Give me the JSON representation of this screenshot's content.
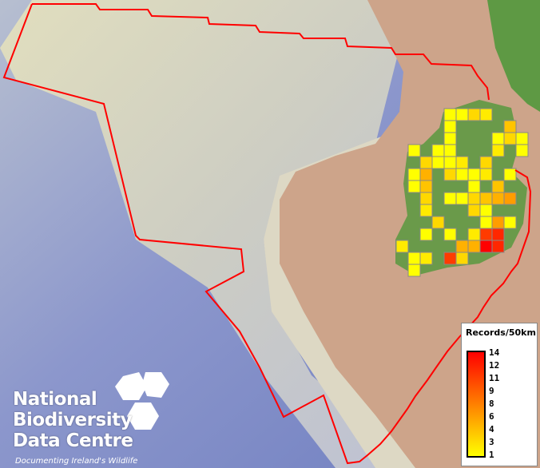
{
  "legend": {
    "title": "Records/50km",
    "ticks": [
      "14",
      "12",
      "11",
      "9",
      "8",
      "6",
      "4",
      "3",
      "1"
    ],
    "colors": {
      "high": "#ff0000",
      "mid": "#ff8000",
      "low": "#ffff00"
    }
  },
  "logo": {
    "line1": "National",
    "line2": "Biodiversity",
    "line3": "Data Centre",
    "tagline": "Documenting Ireland's Wildlife"
  },
  "colors": {
    "boundary": "#ff0000",
    "land": "#6a9a4a",
    "grid_border": "#888888"
  },
  "grid_records": [
    {
      "col": 4,
      "row": 0,
      "v": 1
    },
    {
      "col": 5,
      "row": 0,
      "v": 1
    },
    {
      "col": 6,
      "row": 0,
      "v": 3
    },
    {
      "col": 7,
      "row": 0,
      "v": 2
    },
    {
      "col": 4,
      "row": 1,
      "v": 1
    },
    {
      "col": 9,
      "row": 1,
      "v": 4
    },
    {
      "col": 4,
      "row": 2,
      "v": 1
    },
    {
      "col": 8,
      "row": 2,
      "v": 1
    },
    {
      "col": 9,
      "row": 2,
      "v": 3
    },
    {
      "col": 10,
      "row": 2,
      "v": 1
    },
    {
      "col": 1,
      "row": 3,
      "v": 1
    },
    {
      "col": 3,
      "row": 3,
      "v": 1
    },
    {
      "col": 4,
      "row": 3,
      "v": 1
    },
    {
      "col": 8,
      "row": 3,
      "v": 2
    },
    {
      "col": 10,
      "row": 3,
      "v": 1
    },
    {
      "col": 2,
      "row": 4,
      "v": 3
    },
    {
      "col": 3,
      "row": 4,
      "v": 1
    },
    {
      "col": 4,
      "row": 4,
      "v": 1
    },
    {
      "col": 5,
      "row": 4,
      "v": 2
    },
    {
      "col": 7,
      "row": 4,
      "v": 3
    },
    {
      "col": 1,
      "row": 5,
      "v": 1
    },
    {
      "col": 2,
      "row": 5,
      "v": 5
    },
    {
      "col": 4,
      "row": 5,
      "v": 3
    },
    {
      "col": 5,
      "row": 5,
      "v": 1
    },
    {
      "col": 6,
      "row": 5,
      "v": 1
    },
    {
      "col": 7,
      "row": 5,
      "v": 2
    },
    {
      "col": 9,
      "row": 5,
      "v": 1
    },
    {
      "col": 1,
      "row": 6,
      "v": 1
    },
    {
      "col": 2,
      "row": 6,
      "v": 4
    },
    {
      "col": 6,
      "row": 6,
      "v": 1
    },
    {
      "col": 8,
      "row": 6,
      "v": 4
    },
    {
      "col": 2,
      "row": 7,
      "v": 3
    },
    {
      "col": 4,
      "row": 7,
      "v": 1
    },
    {
      "col": 5,
      "row": 7,
      "v": 1
    },
    {
      "col": 6,
      "row": 7,
      "v": 3
    },
    {
      "col": 7,
      "row": 7,
      "v": 4
    },
    {
      "col": 8,
      "row": 7,
      "v": 5
    },
    {
      "col": 9,
      "row": 7,
      "v": 6
    },
    {
      "col": 2,
      "row": 8,
      "v": 2
    },
    {
      "col": 6,
      "row": 8,
      "v": 3
    },
    {
      "col": 7,
      "row": 8,
      "v": 1
    },
    {
      "col": 3,
      "row": 9,
      "v": 3
    },
    {
      "col": 7,
      "row": 9,
      "v": 1
    },
    {
      "col": 8,
      "row": 9,
      "v": 6
    },
    {
      "col": 9,
      "row": 9,
      "v": 1
    },
    {
      "col": 2,
      "row": 10,
      "v": 1
    },
    {
      "col": 4,
      "row": 10,
      "v": 1
    },
    {
      "col": 6,
      "row": 10,
      "v": 2
    },
    {
      "col": 7,
      "row": 10,
      "v": 11
    },
    {
      "col": 8,
      "row": 10,
      "v": 12
    },
    {
      "col": 0,
      "row": 11,
      "v": 2
    },
    {
      "col": 5,
      "row": 11,
      "v": 5
    },
    {
      "col": 6,
      "row": 11,
      "v": 5
    },
    {
      "col": 7,
      "row": 11,
      "v": 14
    },
    {
      "col": 8,
      "row": 11,
      "v": 12
    },
    {
      "col": 1,
      "row": 12,
      "v": 1
    },
    {
      "col": 2,
      "row": 12,
      "v": 2
    },
    {
      "col": 4,
      "row": 12,
      "v": 11
    },
    {
      "col": 5,
      "row": 12,
      "v": 3
    },
    {
      "col": 1,
      "row": 13,
      "v": 1
    }
  ]
}
